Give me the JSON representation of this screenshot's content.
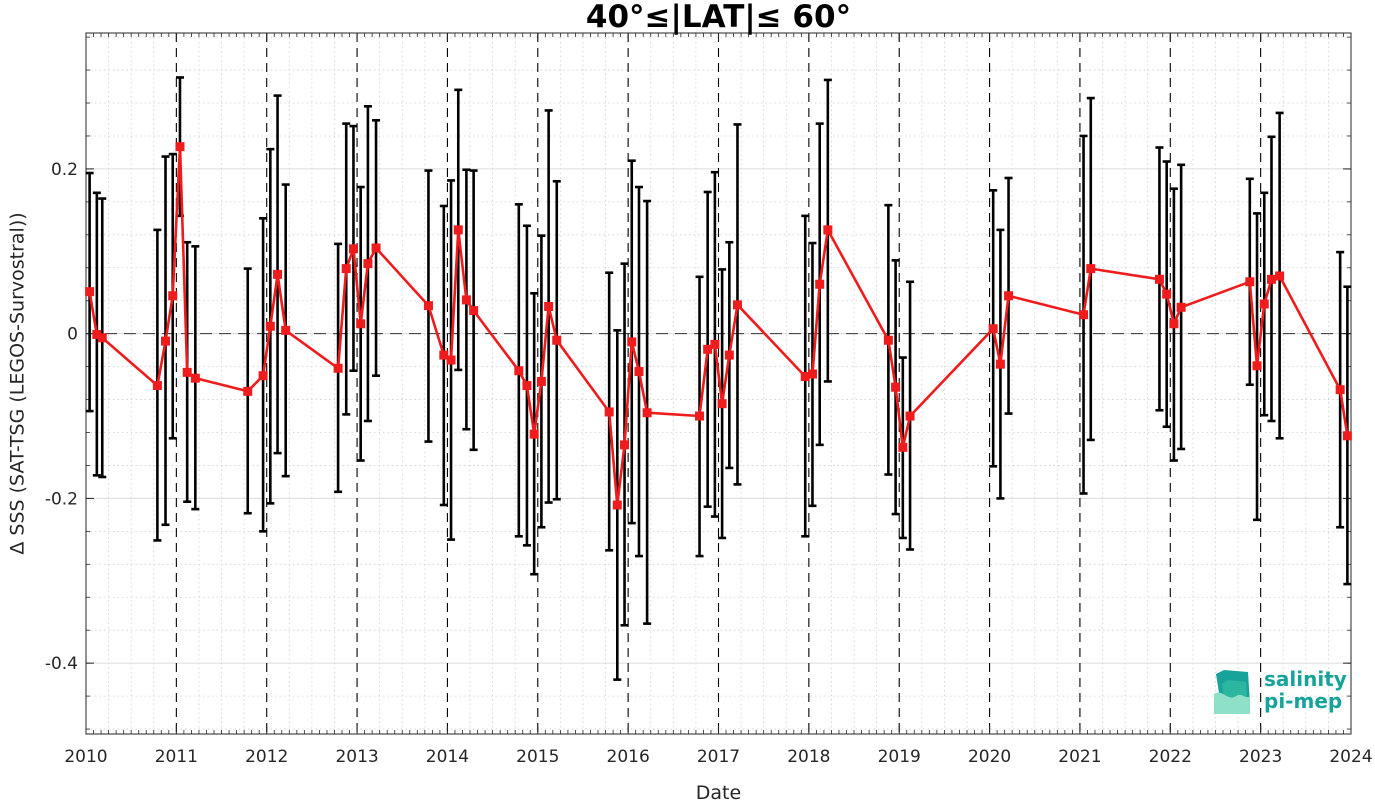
{
  "chart_data": {
    "type": "line",
    "title": "40°≤|LAT|≤ 60°",
    "xlabel": "Date",
    "ylabel": "Δ SSS (SAT-TSG (LEGOS-Survostral))",
    "xlim": [
      2010,
      2024
    ],
    "ylim": [
      -0.486,
      0.365
    ],
    "x_ticks": [
      2010,
      2011,
      2012,
      2013,
      2014,
      2015,
      2016,
      2017,
      2018,
      2019,
      2020,
      2021,
      2022,
      2023,
      2024
    ],
    "x_tick_labels": [
      "2010",
      "2011",
      "2012",
      "2013",
      "2014",
      "2015",
      "2016",
      "2017",
      "2018",
      "2019",
      "2020",
      "2021",
      "2022",
      "2023",
      "2024"
    ],
    "y_ticks": [
      0.2,
      0,
      -0.2,
      -0.4
    ],
    "y_tick_labels": [
      "0.2",
      "0",
      "-0.2",
      "-0.4"
    ],
    "grid": true,
    "zero_line": true,
    "year_lines": true,
    "series": [
      {
        "color": "#ee1c1c",
        "errorbar_color": "#000000",
        "marker": "square",
        "points": [
          {
            "x": 2010.04,
            "y": 0.051,
            "low": -0.094,
            "high": 0.195
          },
          {
            "x": 2010.12,
            "y": -0.001,
            "low": -0.172,
            "high": 0.171
          },
          {
            "x": 2010.18,
            "y": -0.005,
            "low": -0.174,
            "high": 0.164
          },
          {
            "x": 2010.79,
            "y": -0.063,
            "low": -0.251,
            "high": 0.126
          },
          {
            "x": 2010.88,
            "y": -0.009,
            "low": -0.232,
            "high": 0.215
          },
          {
            "x": 2010.96,
            "y": 0.046,
            "low": -0.127,
            "high": 0.218
          },
          {
            "x": 2011.04,
            "y": 0.227,
            "low": 0.143,
            "high": 0.311
          },
          {
            "x": 2011.12,
            "y": -0.047,
            "low": -0.204,
            "high": 0.111
          },
          {
            "x": 2011.21,
            "y": -0.054,
            "low": -0.213,
            "high": 0.106
          },
          {
            "x": 2011.79,
            "y": -0.07,
            "low": -0.218,
            "high": 0.079
          },
          {
            "x": 2011.96,
            "y": -0.051,
            "low": -0.24,
            "high": 0.14
          },
          {
            "x": 2012.04,
            "y": 0.009,
            "low": -0.206,
            "high": 0.224
          },
          {
            "x": 2012.12,
            "y": 0.072,
            "low": -0.145,
            "high": 0.289
          },
          {
            "x": 2012.21,
            "y": 0.004,
            "low": -0.173,
            "high": 0.181
          },
          {
            "x": 2012.79,
            "y": -0.042,
            "low": -0.192,
            "high": 0.109
          },
          {
            "x": 2012.88,
            "y": 0.079,
            "low": -0.098,
            "high": 0.255
          },
          {
            "x": 2012.96,
            "y": 0.103,
            "low": -0.045,
            "high": 0.252
          },
          {
            "x": 2013.04,
            "y": 0.012,
            "low": -0.154,
            "high": 0.178
          },
          {
            "x": 2013.12,
            "y": 0.085,
            "low": -0.106,
            "high": 0.276
          },
          {
            "x": 2013.21,
            "y": 0.104,
            "low": -0.051,
            "high": 0.259
          },
          {
            "x": 2013.79,
            "y": 0.034,
            "low": -0.131,
            "high": 0.198
          },
          {
            "x": 2013.96,
            "y": -0.026,
            "low": -0.208,
            "high": 0.155
          },
          {
            "x": 2014.04,
            "y": -0.032,
            "low": -0.25,
            "high": 0.186
          },
          {
            "x": 2014.12,
            "y": 0.126,
            "low": -0.044,
            "high": 0.296
          },
          {
            "x": 2014.21,
            "y": 0.041,
            "low": -0.116,
            "high": 0.199
          },
          {
            "x": 2014.29,
            "y": 0.028,
            "low": -0.141,
            "high": 0.198
          },
          {
            "x": 2014.79,
            "y": -0.045,
            "low": -0.246,
            "high": 0.157
          },
          {
            "x": 2014.88,
            "y": -0.063,
            "low": -0.257,
            "high": 0.131
          },
          {
            "x": 2014.96,
            "y": -0.122,
            "low": -0.292,
            "high": 0.049
          },
          {
            "x": 2015.04,
            "y": -0.058,
            "low": -0.235,
            "high": 0.119
          },
          {
            "x": 2015.12,
            "y": 0.033,
            "low": -0.205,
            "high": 0.271
          },
          {
            "x": 2015.21,
            "y": -0.008,
            "low": -0.201,
            "high": 0.185
          },
          {
            "x": 2015.79,
            "y": -0.095,
            "low": -0.263,
            "high": 0.074
          },
          {
            "x": 2015.88,
            "y": -0.208,
            "low": -0.42,
            "high": 0.004
          },
          {
            "x": 2015.96,
            "y": -0.135,
            "low": -0.354,
            "high": 0.085
          },
          {
            "x": 2016.04,
            "y": -0.01,
            "low": -0.23,
            "high": 0.21
          },
          {
            "x": 2016.12,
            "y": -0.046,
            "low": -0.27,
            "high": 0.178
          },
          {
            "x": 2016.21,
            "y": -0.096,
            "low": -0.352,
            "high": 0.161
          },
          {
            "x": 2016.79,
            "y": -0.1,
            "low": -0.27,
            "high": 0.069
          },
          {
            "x": 2016.88,
            "y": -0.019,
            "low": -0.21,
            "high": 0.172
          },
          {
            "x": 2016.96,
            "y": -0.013,
            "low": -0.222,
            "high": 0.196
          },
          {
            "x": 2017.04,
            "y": -0.085,
            "low": -0.248,
            "high": 0.078
          },
          {
            "x": 2017.12,
            "y": -0.026,
            "low": -0.163,
            "high": 0.111
          },
          {
            "x": 2017.21,
            "y": 0.035,
            "low": -0.183,
            "high": 0.254
          },
          {
            "x": 2017.96,
            "y": -0.052,
            "low": -0.246,
            "high": 0.143
          },
          {
            "x": 2018.04,
            "y": -0.049,
            "low": -0.209,
            "high": 0.11
          },
          {
            "x": 2018.12,
            "y": 0.06,
            "low": -0.135,
            "high": 0.255
          },
          {
            "x": 2018.21,
            "y": 0.126,
            "low": -0.058,
            "high": 0.308
          },
          {
            "x": 2018.88,
            "y": -0.008,
            "low": -0.171,
            "high": 0.156
          },
          {
            "x": 2018.96,
            "y": -0.065,
            "low": -0.219,
            "high": 0.089
          },
          {
            "x": 2019.04,
            "y": -0.138,
            "low": -0.248,
            "high": -0.029
          },
          {
            "x": 2019.12,
            "y": -0.1,
            "low": -0.262,
            "high": 0.063
          },
          {
            "x": 2020.04,
            "y": 0.006,
            "low": -0.161,
            "high": 0.174
          },
          {
            "x": 2020.12,
            "y": -0.037,
            "low": -0.2,
            "high": 0.126
          },
          {
            "x": 2020.21,
            "y": 0.046,
            "low": -0.097,
            "high": 0.189
          },
          {
            "x": 2021.04,
            "y": 0.023,
            "low": -0.194,
            "high": 0.24
          },
          {
            "x": 2021.12,
            "y": 0.079,
            "low": -0.129,
            "high": 0.286
          },
          {
            "x": 2021.88,
            "y": 0.066,
            "low": -0.093,
            "high": 0.226
          },
          {
            "x": 2021.96,
            "y": 0.048,
            "low": -0.113,
            "high": 0.209
          },
          {
            "x": 2022.04,
            "y": 0.012,
            "low": -0.154,
            "high": 0.176
          },
          {
            "x": 2022.12,
            "y": 0.032,
            "low": -0.14,
            "high": 0.205
          },
          {
            "x": 2022.88,
            "y": 0.063,
            "low": -0.062,
            "high": 0.188
          },
          {
            "x": 2022.96,
            "y": -0.039,
            "low": -0.226,
            "high": 0.146
          },
          {
            "x": 2023.04,
            "y": 0.036,
            "low": -0.099,
            "high": 0.171
          },
          {
            "x": 2023.12,
            "y": 0.066,
            "low": -0.106,
            "high": 0.239
          },
          {
            "x": 2023.21,
            "y": 0.07,
            "low": -0.127,
            "high": 0.268
          },
          {
            "x": 2023.88,
            "y": -0.068,
            "low": -0.235,
            "high": 0.099
          },
          {
            "x": 2023.96,
            "y": -0.124,
            "low": -0.304,
            "high": 0.057
          }
        ]
      }
    ]
  },
  "logo": {
    "line1": "salinity",
    "line2": "pi-mep",
    "primary_color": "#17a39a",
    "light_color": "#8fe0c8"
  }
}
